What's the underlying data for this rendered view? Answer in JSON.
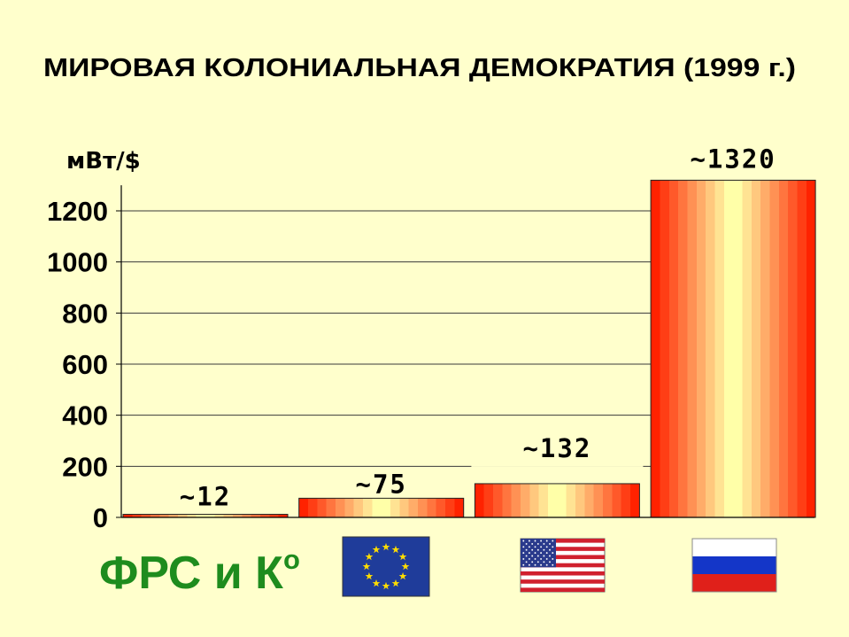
{
  "chart_data": {
    "type": "bar",
    "title": "МИРОВАЯ КОЛОНИАЛЬНАЯ ДЕМОКРАТИЯ (1999 г.)",
    "xlabel": "",
    "ylabel": "мВт/$",
    "ylim": [
      0,
      1300
    ],
    "yticks": [
      0,
      200,
      400,
      600,
      800,
      1000,
      1200
    ],
    "ytick_labels": [
      "0",
      "200",
      "400",
      "600",
      "800",
      "1000",
      "1200"
    ],
    "grid": true,
    "categories": [
      {
        "text": "ФРС и К",
        "superscript": "о"
      },
      {
        "icon": "eu-flag-icon"
      },
      {
        "icon": "us-flag-icon"
      },
      {
        "icon": "russia-flag-icon"
      }
    ],
    "values": [
      12,
      75,
      132,
      1320
    ],
    "data_labels": [
      "~12",
      "~75",
      "~132",
      "~1320"
    ],
    "colors": {
      "background": "#FFFFCC",
      "bar_edge": "#FF2200",
      "bar_center": "#FFFFA8",
      "category_text": "#1E8C1E",
      "eu_flag": "#1F3C9A",
      "eu_star": "#FFDD00"
    }
  }
}
